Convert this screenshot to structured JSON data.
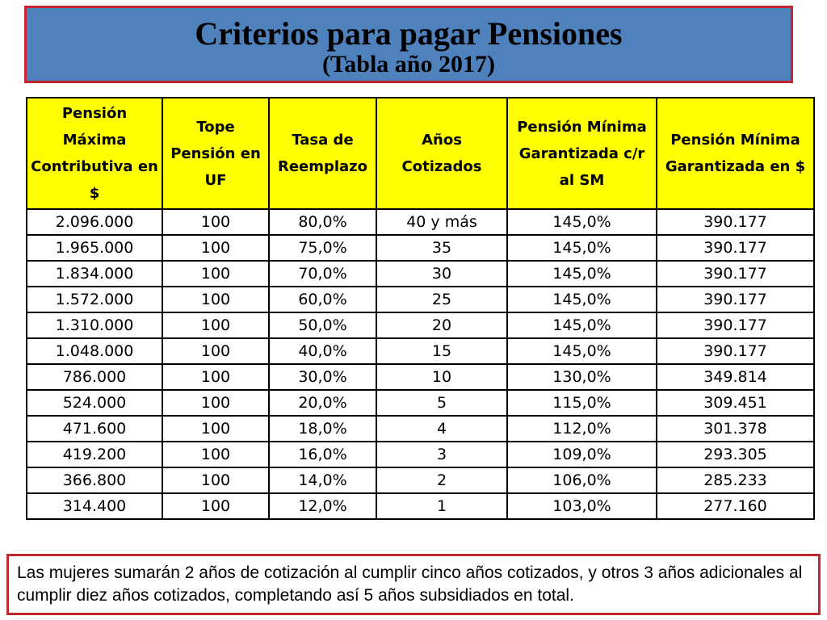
{
  "title": {
    "main": "Criterios para pagar Pensiones",
    "subtitle": "(Tabla año 2017)"
  },
  "table": {
    "headers": [
      "Pensión Máxima Contributiva en $",
      "Tope Pensión en UF",
      "Tasa de Reemplazo",
      "Años Cotizados",
      "Pensión Mínima Garantizada c/r al SM",
      "Pensión Mínima Garantizada en $"
    ],
    "rows": [
      [
        "2.096.000",
        "100",
        "80,0%",
        "40 y más",
        "145,0%",
        "390.177"
      ],
      [
        "1.965.000",
        "100",
        "75,0%",
        "35",
        "145,0%",
        "390.177"
      ],
      [
        "1.834.000",
        "100",
        "70,0%",
        "30",
        "145,0%",
        "390.177"
      ],
      [
        "1.572.000",
        "100",
        "60,0%",
        "25",
        "145,0%",
        "390.177"
      ],
      [
        "1.310.000",
        "100",
        "50,0%",
        "20",
        "145,0%",
        "390.177"
      ],
      [
        "1.048.000",
        "100",
        "40,0%",
        "15",
        "145,0%",
        "390.177"
      ],
      [
        "786.000",
        "100",
        "30,0%",
        "10",
        "130,0%",
        "349.814"
      ],
      [
        "524.000",
        "100",
        "20,0%",
        "5",
        "115,0%",
        "309.451"
      ],
      [
        "471.600",
        "100",
        "18,0%",
        "4",
        "112,0%",
        "301.378"
      ],
      [
        "419.200",
        "100",
        "16,0%",
        "3",
        "109,0%",
        "293.305"
      ],
      [
        "366.800",
        "100",
        "14,0%",
        "2",
        "106,0%",
        "285.233"
      ],
      [
        "314.400",
        "100",
        "12,0%",
        "1",
        "103,0%",
        "277.160"
      ]
    ]
  },
  "note": "Las mujeres sumarán 2 años de cotización al cumplir cinco años cotizados, y otros 3 años adicionales al cumplir diez años cotizados, completando así 5 años subsidiados en total.",
  "colors": {
    "title_background": "#4f81bd",
    "border_accent": "#c0282d",
    "header_background": "#ffff00"
  }
}
